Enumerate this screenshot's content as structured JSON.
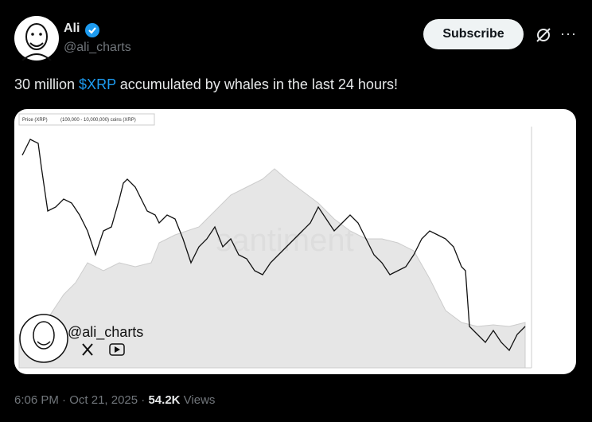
{
  "header": {
    "name": "Ali",
    "handle": "@ali_charts",
    "button": "Subscribe",
    "more": "···"
  },
  "post": {
    "text_before": "30 million ",
    "cashtag": "$XRP",
    "text_after": " accumulated by whales in the last 24 hours!"
  },
  "media": {
    "legend_price": "Price (XRP)",
    "legend_coins": "(100,000 - 10,000,000) coins (XRP)",
    "watermark": "santiment",
    "handle": "@ali_charts"
  },
  "footer": {
    "time": "6:06 PM",
    "separator": "·",
    "date": "Oct 21, 2025",
    "views_count": "54.2K",
    "views_label": "Views"
  }
}
